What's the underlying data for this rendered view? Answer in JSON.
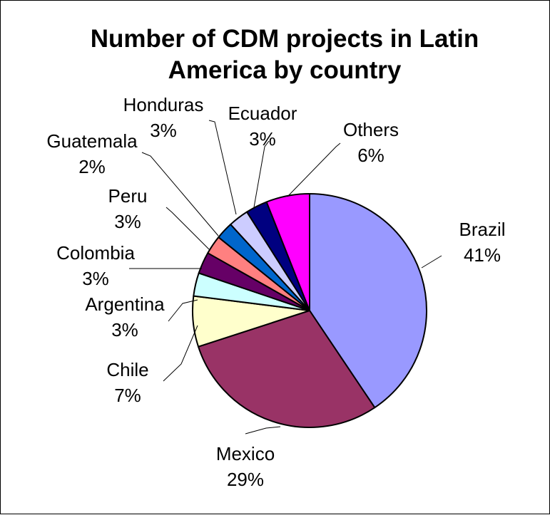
{
  "chart_data": {
    "type": "pie",
    "title_lines": [
      "Number of CDM projects in Latin",
      "America by country"
    ],
    "start_angle_deg": 0,
    "direction": "clockwise",
    "slices": [
      {
        "label": "Brazil",
        "percent_label": "41%",
        "value": 40.6,
        "color": "#9999FF"
      },
      {
        "label": "Mexico",
        "percent_label": "29%",
        "value": 29.4,
        "color": "#993366"
      },
      {
        "label": "Chile",
        "percent_label": "7%",
        "value": 7.0,
        "color": "#FFFFCC"
      },
      {
        "label": "Argentina",
        "percent_label": "3%",
        "value": 3.2,
        "color": "#CCFFFF"
      },
      {
        "label": "Colombia",
        "percent_label": "3%",
        "value": 3.0,
        "color": "#660066"
      },
      {
        "label": "Peru",
        "percent_label": "3%",
        "value": 2.6,
        "color": "#FF8080"
      },
      {
        "label": "Guatemala",
        "percent_label": "2%",
        "value": 2.4,
        "color": "#0066CC"
      },
      {
        "label": "Honduras",
        "percent_label": "3%",
        "value": 2.8,
        "color": "#CCCCFF"
      },
      {
        "label": "Ecuador",
        "percent_label": "3%",
        "value": 3.0,
        "color": "#000080"
      },
      {
        "label": "Others",
        "percent_label": "6%",
        "value": 6.0,
        "color": "#FF00FF"
      }
    ]
  }
}
